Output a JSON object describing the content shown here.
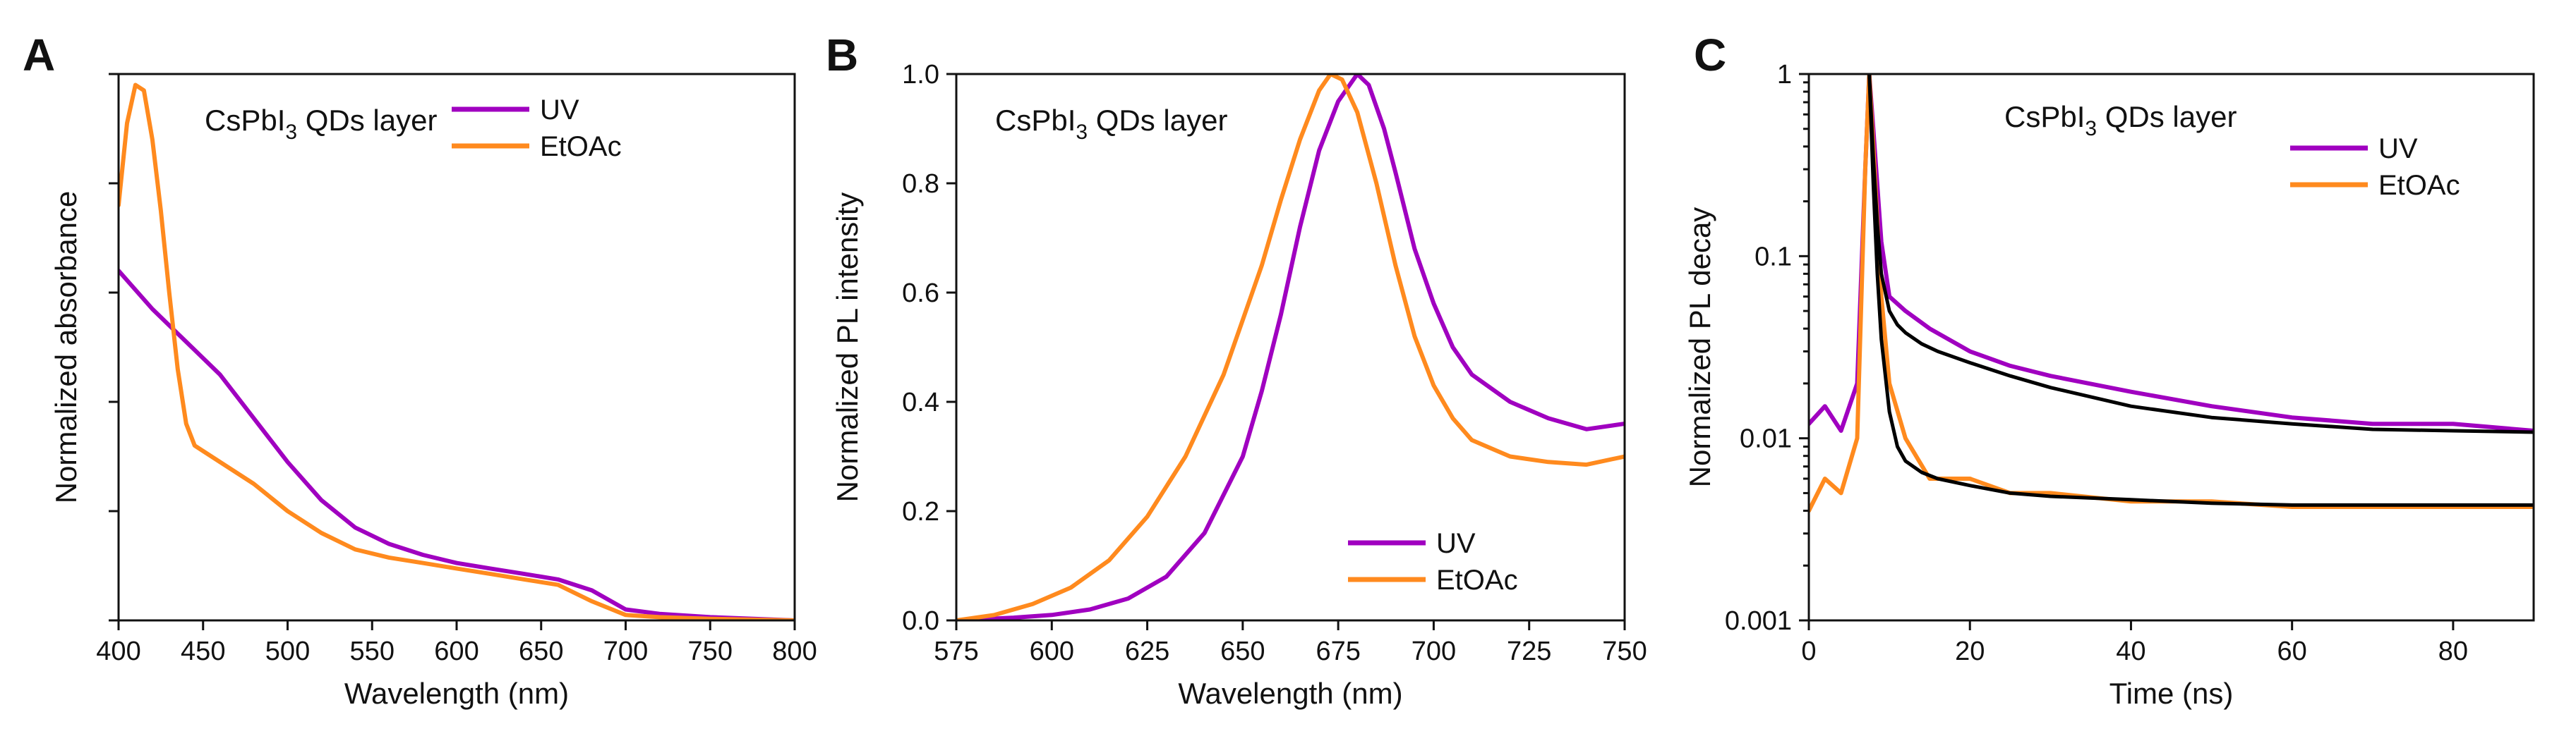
{
  "colors": {
    "uv": "#a000c0",
    "etoac": "#ff8a1e",
    "fit": "#000000"
  },
  "chart_data": [
    {
      "type": "line",
      "panel_label": "A",
      "title_parts": [
        "CsPbI",
        "3",
        " QDs layer"
      ],
      "xlabel": "Wavelength (nm)",
      "ylabel": "Normalized absorbance",
      "xlim": [
        400,
        800
      ],
      "ylim": [
        0,
        1
      ],
      "xticks": [
        400,
        450,
        500,
        550,
        600,
        650,
        700,
        750,
        800
      ],
      "yticks": [
        0,
        0.2,
        0.4,
        0.6,
        0.8,
        1.0
      ],
      "show_y_tick_labels": false,
      "legend": [
        "UV",
        "EtOAc"
      ],
      "legend_position": "top-center",
      "series": [
        {
          "name": "UV",
          "color_key": "uv",
          "x": [
            400,
            420,
            440,
            460,
            480,
            500,
            520,
            540,
            560,
            580,
            600,
            620,
            640,
            660,
            680,
            700,
            720,
            750,
            800
          ],
          "y": [
            0.64,
            0.57,
            0.51,
            0.45,
            0.37,
            0.29,
            0.22,
            0.17,
            0.14,
            0.12,
            0.105,
            0.095,
            0.085,
            0.075,
            0.055,
            0.02,
            0.012,
            0.006,
            0.0
          ]
        },
        {
          "name": "EtOAc",
          "color_key": "etoac",
          "x": [
            400,
            405,
            410,
            415,
            420,
            425,
            430,
            435,
            440,
            445,
            450,
            460,
            480,
            500,
            520,
            540,
            560,
            580,
            600,
            620,
            640,
            660,
            680,
            700,
            720,
            750,
            800
          ],
          "y": [
            0.76,
            0.91,
            0.98,
            0.97,
            0.88,
            0.75,
            0.6,
            0.46,
            0.36,
            0.32,
            0.31,
            0.29,
            0.25,
            0.2,
            0.16,
            0.13,
            0.115,
            0.105,
            0.095,
            0.085,
            0.075,
            0.065,
            0.035,
            0.01,
            0.006,
            0.003,
            0.0
          ]
        }
      ]
    },
    {
      "type": "line",
      "panel_label": "B",
      "title_parts": [
        "CsPbI",
        "3",
        " QDs layer"
      ],
      "xlabel": "Wavelength (nm)",
      "ylabel": "Normalized PL intensity",
      "xlim": [
        575,
        750
      ],
      "ylim": [
        0.0,
        1.0
      ],
      "xticks": [
        575,
        600,
        625,
        650,
        675,
        700,
        725,
        750
      ],
      "yticks": [
        0.0,
        0.2,
        0.4,
        0.6,
        0.8,
        1.0
      ],
      "legend": [
        "UV",
        "EtOAc"
      ],
      "legend_position": "bottom-right",
      "series": [
        {
          "name": "UV",
          "color_key": "uv",
          "x": [
            575,
            590,
            600,
            610,
            620,
            630,
            640,
            650,
            655,
            660,
            665,
            670,
            675,
            680,
            683,
            687,
            690,
            695,
            700,
            705,
            710,
            720,
            730,
            740,
            750
          ],
          "y": [
            0.0,
            0.005,
            0.01,
            0.02,
            0.04,
            0.08,
            0.16,
            0.3,
            0.42,
            0.56,
            0.72,
            0.86,
            0.95,
            1.0,
            0.98,
            0.9,
            0.82,
            0.68,
            0.58,
            0.5,
            0.45,
            0.4,
            0.37,
            0.35,
            0.36
          ]
        },
        {
          "name": "EtOAc",
          "color_key": "etoac",
          "x": [
            575,
            585,
            595,
            605,
            615,
            625,
            635,
            645,
            650,
            655,
            660,
            665,
            670,
            673,
            676,
            680,
            685,
            690,
            695,
            700,
            705,
            710,
            720,
            730,
            740,
            750
          ],
          "y": [
            0.0,
            0.01,
            0.03,
            0.06,
            0.11,
            0.19,
            0.3,
            0.45,
            0.55,
            0.65,
            0.77,
            0.88,
            0.97,
            1.0,
            0.99,
            0.93,
            0.8,
            0.65,
            0.52,
            0.43,
            0.37,
            0.33,
            0.3,
            0.29,
            0.285,
            0.3
          ]
        }
      ]
    },
    {
      "type": "line",
      "panel_label": "C",
      "title_parts": [
        "CsPbI",
        "3",
        " QDs layer"
      ],
      "xlabel": "Time (ns)",
      "ylabel": "Normalized PL decay",
      "yscale": "log",
      "xlim": [
        0,
        90
      ],
      "ylim": [
        0.001,
        1
      ],
      "xticks": [
        0,
        20,
        40,
        60,
        80
      ],
      "yticks": [
        0.001,
        0.01,
        0.1,
        1
      ],
      "ytick_labels": [
        "0.001",
        "0.01",
        "0.1",
        "1"
      ],
      "legend": [
        "UV",
        "EtOAc"
      ],
      "legend_position": "top-right",
      "series": [
        {
          "name": "UV",
          "color_key": "uv",
          "x": [
            0,
            2,
            4,
            6,
            7,
            7.5,
            8,
            9,
            10,
            12,
            15,
            20,
            25,
            30,
            40,
            50,
            60,
            70,
            80,
            90
          ],
          "y": [
            0.012,
            0.015,
            0.011,
            0.02,
            0.3,
            1.0,
            0.5,
            0.12,
            0.06,
            0.05,
            0.04,
            0.03,
            0.025,
            0.022,
            0.018,
            0.015,
            0.013,
            0.012,
            0.012,
            0.011
          ]
        },
        {
          "name": "EtOAc",
          "color_key": "etoac",
          "x": [
            0,
            2,
            4,
            6,
            7,
            7.5,
            8,
            9,
            10,
            12,
            15,
            20,
            25,
            30,
            40,
            50,
            60,
            70,
            80,
            90
          ],
          "y": [
            0.004,
            0.006,
            0.005,
            0.01,
            0.3,
            1.0,
            0.4,
            0.06,
            0.02,
            0.01,
            0.006,
            0.006,
            0.005,
            0.005,
            0.0045,
            0.0045,
            0.0042,
            0.0042,
            0.0042,
            0.0042
          ]
        },
        {
          "name": "UV fit",
          "color_key": "fit",
          "x": [
            7.5,
            8,
            8.5,
            9,
            10,
            11,
            12,
            14,
            16,
            20,
            25,
            30,
            40,
            50,
            60,
            70,
            80,
            90
          ],
          "y": [
            1.0,
            0.35,
            0.15,
            0.08,
            0.05,
            0.042,
            0.038,
            0.033,
            0.03,
            0.026,
            0.022,
            0.019,
            0.015,
            0.013,
            0.012,
            0.0112,
            0.011,
            0.0108
          ]
        },
        {
          "name": "EtOAc fit",
          "color_key": "fit",
          "x": [
            7.5,
            8,
            8.5,
            9,
            10,
            11,
            12,
            14,
            16,
            20,
            25,
            30,
            40,
            50,
            60,
            70,
            80,
            90
          ],
          "y": [
            1.0,
            0.25,
            0.08,
            0.035,
            0.014,
            0.009,
            0.0075,
            0.0065,
            0.006,
            0.0055,
            0.005,
            0.0048,
            0.0046,
            0.0044,
            0.0043,
            0.0043,
            0.0043,
            0.0043
          ]
        }
      ]
    }
  ]
}
